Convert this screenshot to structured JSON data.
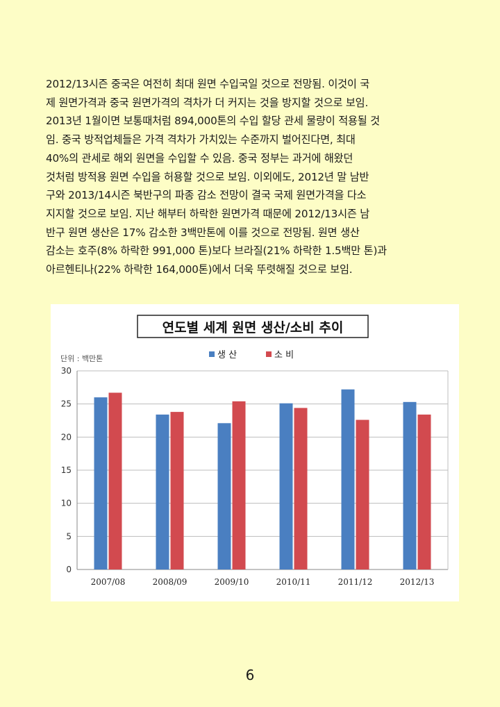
{
  "document": {
    "paragraph_lines": [
      "2012/13시즌 중국은 여전히 최대 원면 수입국일 것으로 전망됨. 이것이 국",
      "제 원면가격과 중국 원면가격의 격차가 더 커지는 것을 방지할 것으로 보임.",
      "2013년 1월이면 보통때처럼 894,000톤의 수입 할당 관세 물량이 적용될 것",
      "임. 중국 방적업체들은 가격 격차가 가치있는 수준까지 벌어진다면, 최대",
      "40%의 관세로 해외 원면을 수입할 수 있음. 중국 정부는 과거에 해왔던",
      "것처럼 방적용 원면 수입을 허용할 것으로 보임. 이외에도, 2012년 말 남반",
      "구와 2013/14시즌 북반구의 파종 감소 전망이 결국 국제 원면가격을 다소",
      "지지할 것으로 보임. 지난 해부터 하락한 원면가격 때문에 2012/13시즌 남",
      "반구 원면 생산은 17% 감소한 3백만톤에 이를 것으로 전망됨. 원면 생산",
      "감소는 호주(8% 하락한 991,000 톤)보다 브라질(21% 하락한 1.5백만 톤)과",
      "아르헨티나(22% 하락한 164,000톤)에서 더욱 뚜렷해질 것으로 보임."
    ],
    "page_number": "6"
  },
  "chart_data": {
    "type": "bar",
    "title": "연도별 세계 원면 생산/소비 추이",
    "unit_label": "단위 : 백만톤",
    "categories": [
      "2007/08",
      "2008/09",
      "2009/10",
      "2010/11",
      "2011/12",
      "2012/13"
    ],
    "series": [
      {
        "name": "생 산",
        "color": "#4a7fc1",
        "values": [
          26.0,
          23.4,
          22.1,
          25.1,
          27.2,
          25.3
        ]
      },
      {
        "name": "소 비",
        "color": "#d24a4f",
        "values": [
          26.7,
          23.8,
          25.4,
          24.4,
          22.6,
          23.4
        ]
      }
    ],
    "ylim": [
      0,
      30
    ],
    "yticks": [
      0,
      5,
      10,
      15,
      20,
      25,
      30
    ],
    "grid": true,
    "legend_position": "top-center"
  }
}
